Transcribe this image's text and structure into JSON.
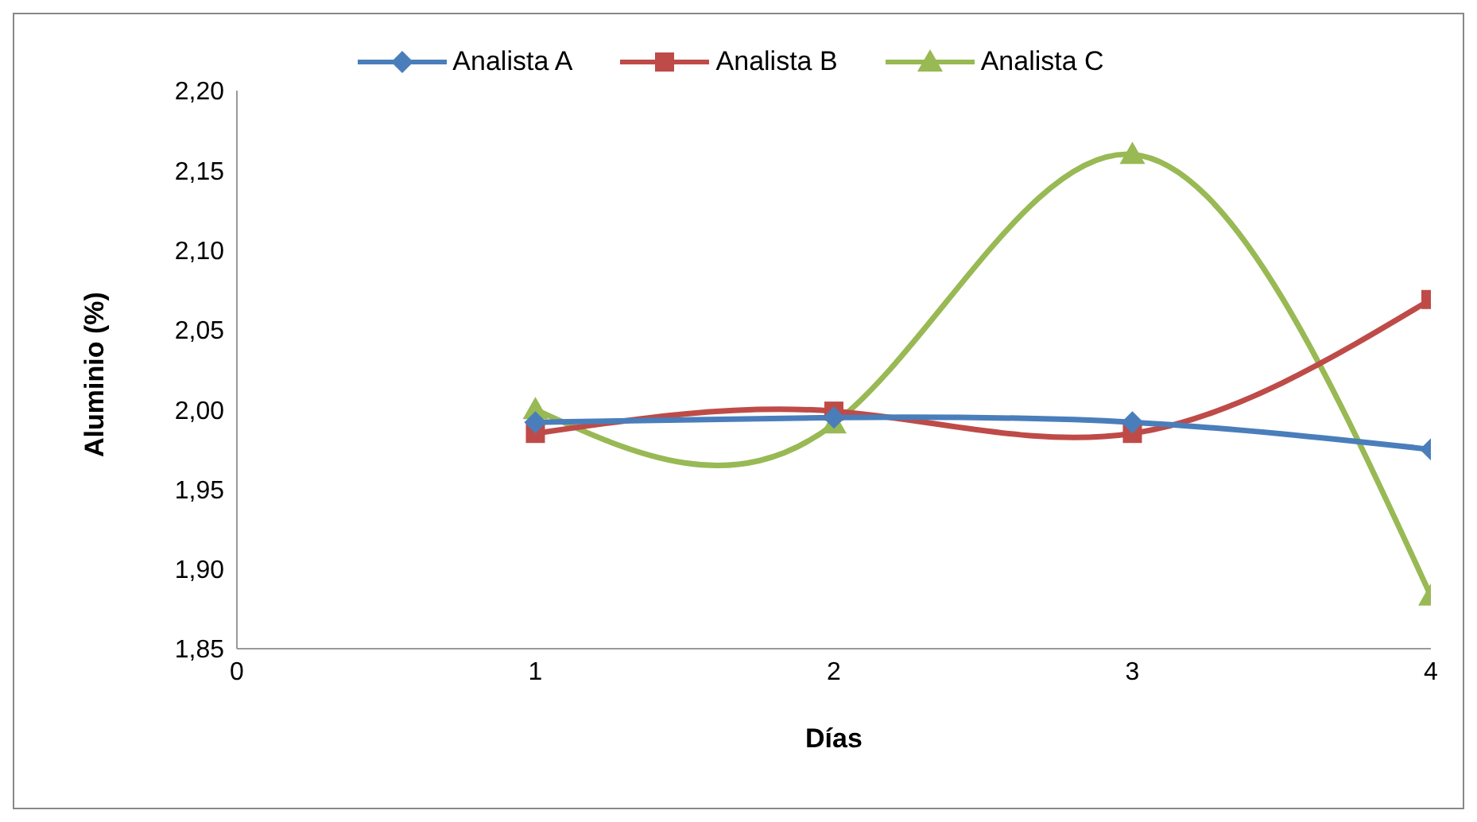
{
  "chart_data": {
    "type": "line",
    "xlabel": "Días",
    "ylabel": "Aluminio (%)",
    "x": [
      1,
      2,
      3,
      4
    ],
    "series": [
      {
        "name": "Analista A",
        "color": "#4a7ebb",
        "marker": "diamond",
        "values": [
          1.992,
          1.995,
          1.992,
          1.975
        ]
      },
      {
        "name": "Analista B",
        "color": "#be4b48",
        "marker": "square",
        "values": [
          1.985,
          1.999,
          1.985,
          2.069
        ]
      },
      {
        "name": "Analista C",
        "color": "#98b954",
        "marker": "triangle",
        "values": [
          2.0,
          1.991,
          2.16,
          1.883
        ]
      }
    ],
    "xlim": [
      0,
      4
    ],
    "xticks": [
      0,
      1,
      2,
      3,
      4
    ],
    "ylim": [
      1.85,
      2.2
    ],
    "yticks": [
      {
        "value": 1.85,
        "label": "1,85"
      },
      {
        "value": 1.9,
        "label": "1,90"
      },
      {
        "value": 1.95,
        "label": "1,95"
      },
      {
        "value": 2.0,
        "label": "2,00"
      },
      {
        "value": 2.05,
        "label": "2,05"
      },
      {
        "value": 2.1,
        "label": "2,10"
      },
      {
        "value": 2.15,
        "label": "2,15"
      },
      {
        "value": 2.2,
        "label": "2,20"
      }
    ],
    "grid": false,
    "legend": "top",
    "line_style": "solid"
  }
}
